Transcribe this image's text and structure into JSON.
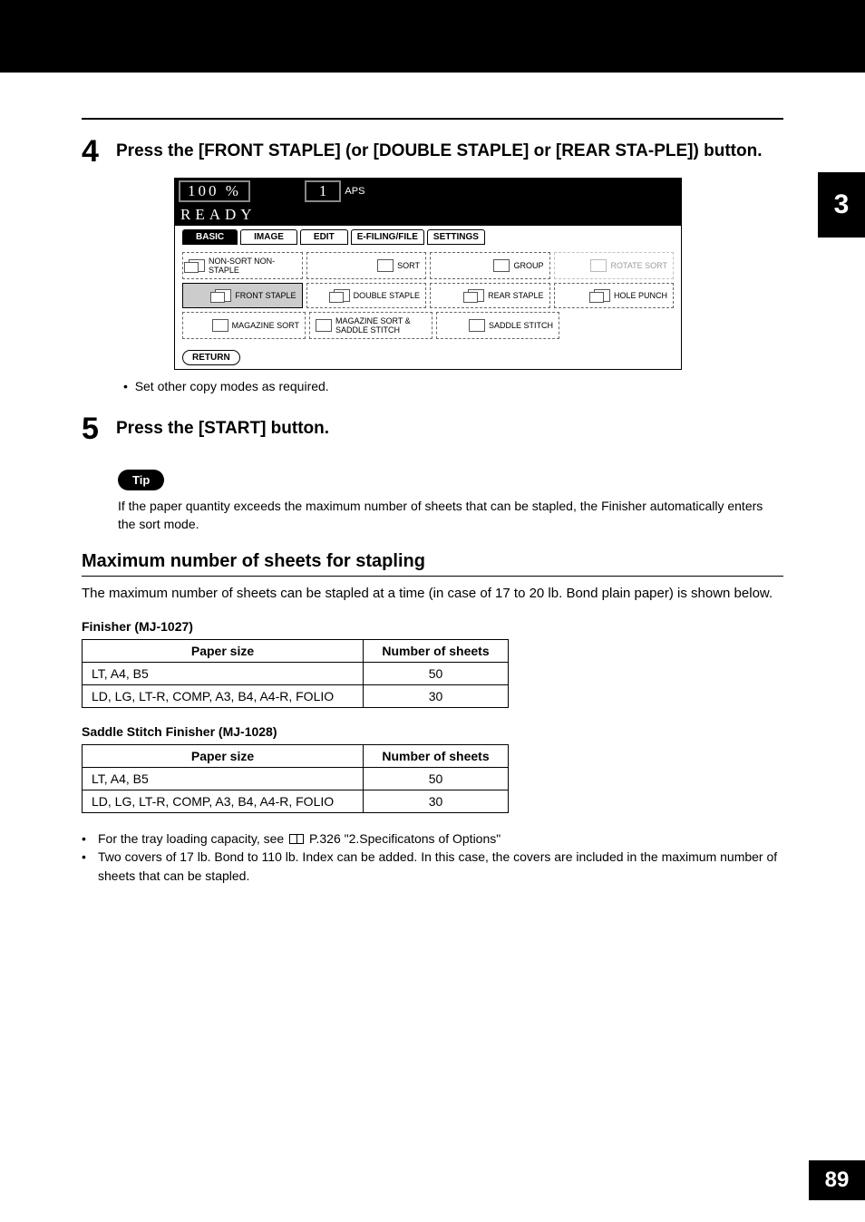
{
  "step4": {
    "num": "4",
    "text": "Press the [FRONT STAPLE] (or [DOUBLE STAPLE] or [REAR STA-PLE]) button."
  },
  "screenshot": {
    "pct": "100 %",
    "qty": "1",
    "aps": "APS",
    "ready": "READY",
    "tabs": {
      "basic": "BASIC",
      "image": "IMAGE",
      "edit": "EDIT",
      "efiling": "E-FILING/FILE",
      "settings": "SETTINGS"
    },
    "buttons": {
      "nonsort": "NON-SORT\nNON-STAPLE",
      "sort": "SORT",
      "group": "GROUP",
      "rotate": "ROTATE SORT",
      "front": "FRONT STAPLE",
      "double": "DOUBLE STAPLE",
      "rear": "REAR  STAPLE",
      "hole": "HOLE PUNCH",
      "mag": "MAGAZINE SORT",
      "magss": "MAGAZINE SORT\n& SADDLE STITCH",
      "saddle": "SADDLE  STITCH"
    },
    "return": "RETURN"
  },
  "bullet_after_shot": "Set other copy modes as required.",
  "step5": {
    "num": "5",
    "text": "Press the [START] button."
  },
  "tip": {
    "label": "Tip",
    "text": "If the paper quantity exceeds the maximum number of sheets that can be stapled, the Finisher automatically enters the sort mode."
  },
  "section": {
    "heading": "Maximum number of sheets for stapling",
    "para": "The maximum number of sheets can be stapled at a time (in case of 17 to 20 lb. Bond plain paper) is shown below."
  },
  "table_headers": {
    "paper": "Paper size",
    "num": "Number of sheets"
  },
  "finisher1": {
    "title": "Finisher (MJ-1027)",
    "rows": [
      {
        "size": "LT, A4, B5",
        "n": "50"
      },
      {
        "size": "LD, LG, LT-R, COMP, A3, B4, A4-R, FOLIO",
        "n": "30"
      }
    ]
  },
  "finisher2": {
    "title": "Saddle Stitch Finisher (MJ-1028)",
    "rows": [
      {
        "size": "LT, A4, B5",
        "n": "50"
      },
      {
        "size": "LD, LG, LT-R, COMP, A3, B4, A4-R, FOLIO",
        "n": "30"
      }
    ]
  },
  "footnotes": {
    "a_pre": "For the tray loading capacity, see ",
    "a_post": " P.326 \"2.Specificatons of Options\"",
    "b": "Two covers of 17 lb. Bond to 110 lb. Index can be added. In this case, the covers are included in the maximum number of sheets that can be stapled."
  },
  "side_tab": "3",
  "page_num": "89"
}
